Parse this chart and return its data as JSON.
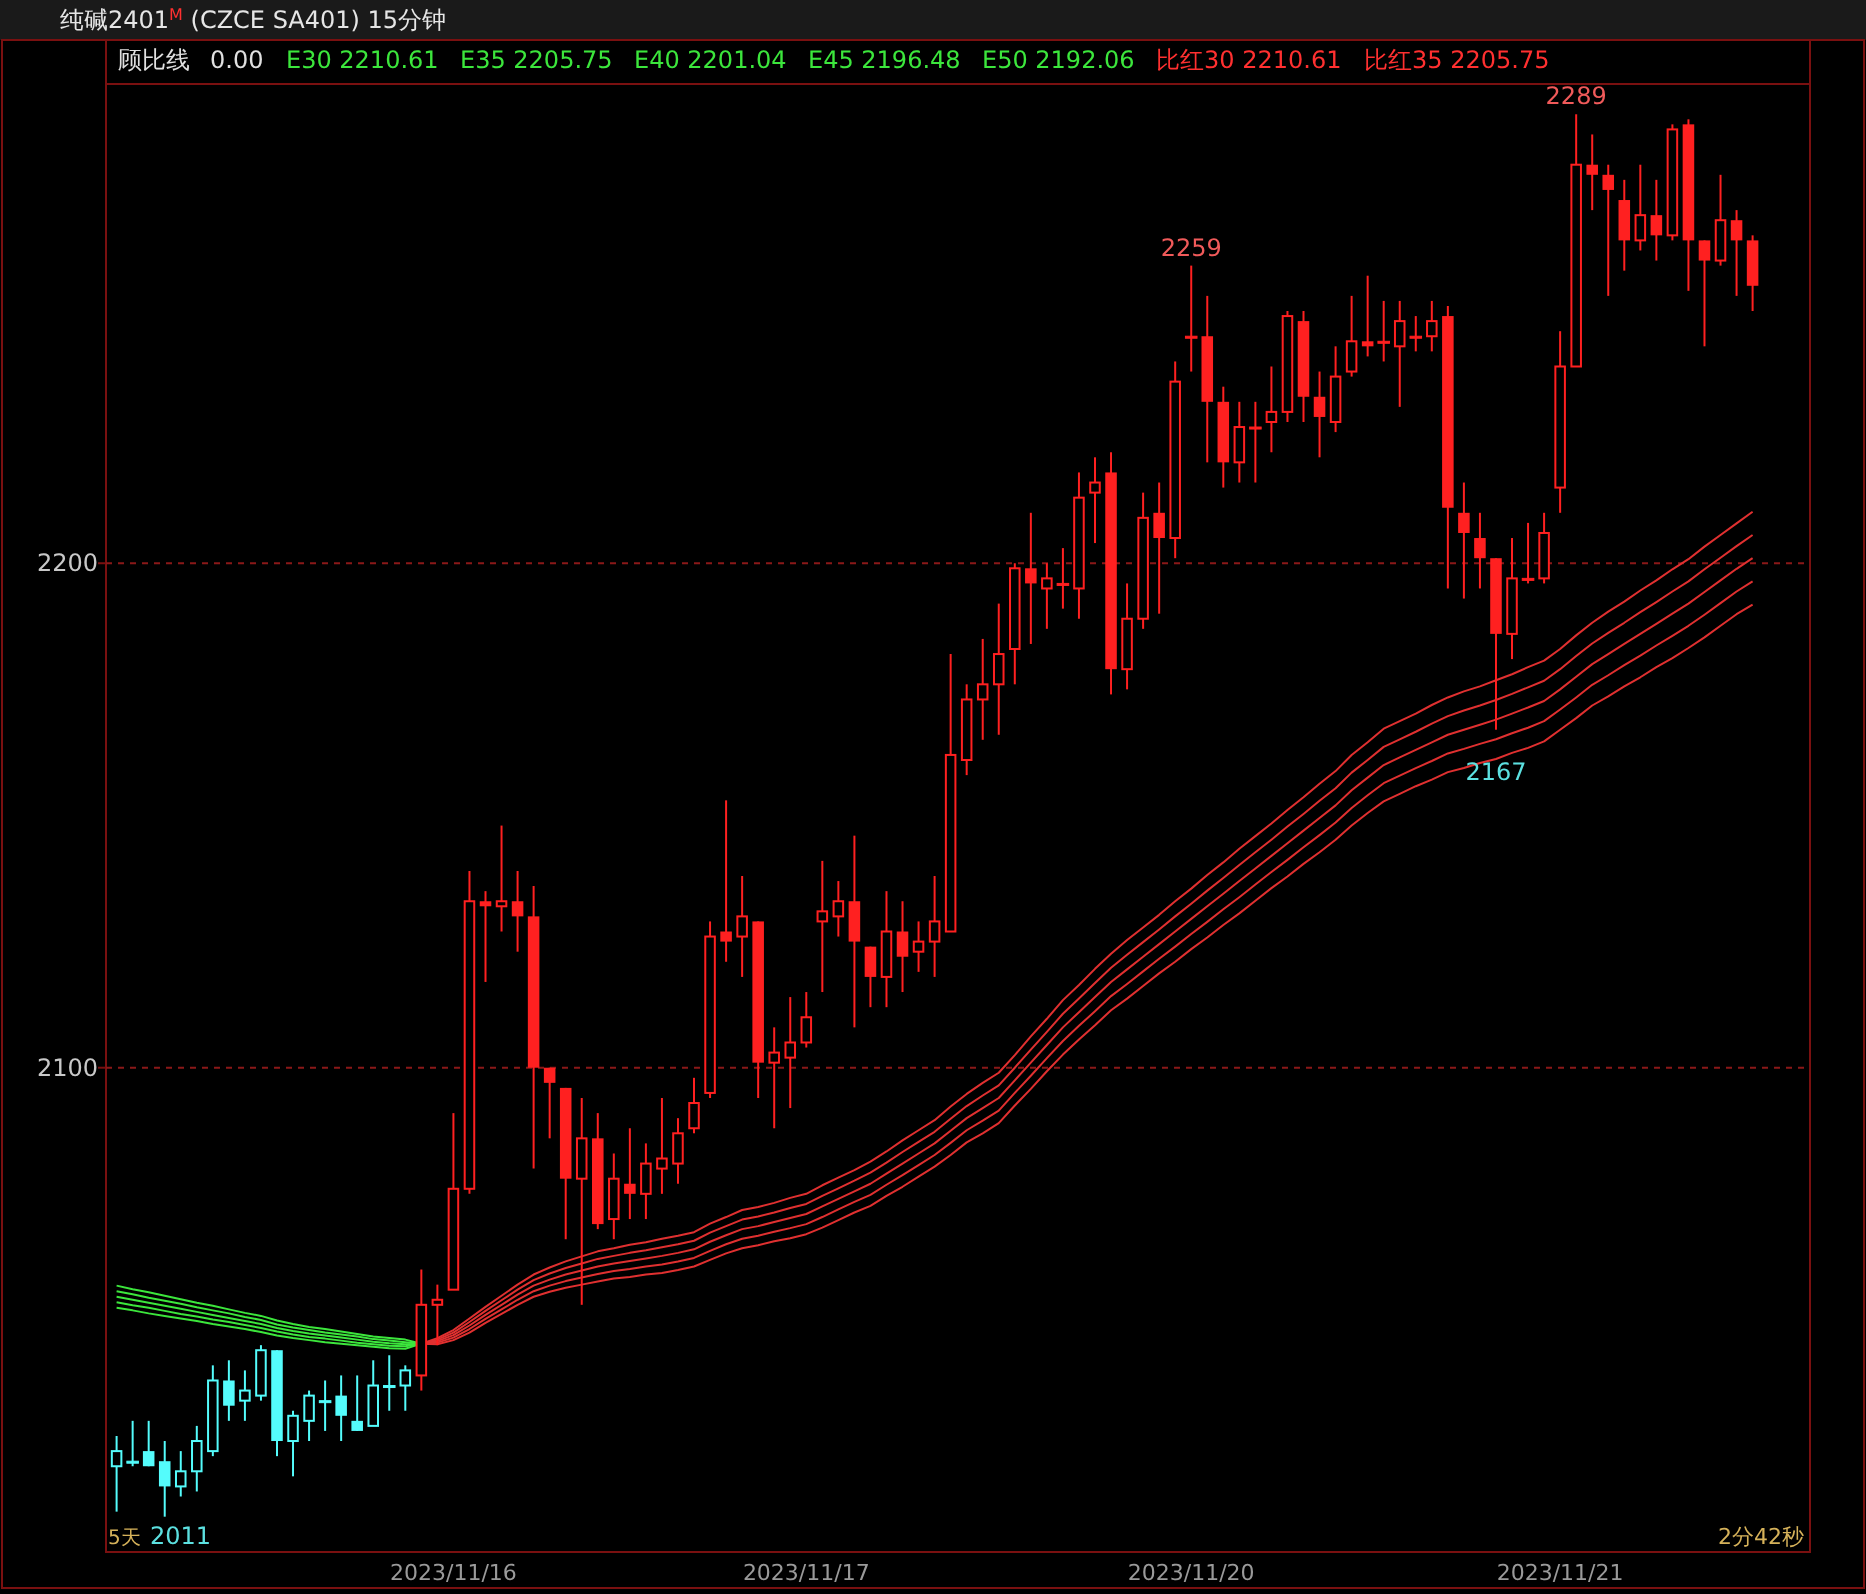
{
  "chart_data": {
    "type": "candlestick",
    "title": "纯碱2401$^{M}$ (CZCE SA401)  15分钟",
    "categories": [
      null,
      null,
      null,
      null,
      null,
      null,
      null,
      null,
      null,
      null,
      null,
      null,
      null,
      null,
      null,
      null,
      null,
      null,
      null,
      null,
      null,
      "2023/11/16",
      null,
      null,
      null,
      null,
      null,
      null,
      null,
      null,
      null,
      null,
      null,
      null,
      null,
      null,
      null,
      null,
      null,
      null,
      null,
      null,
      null,
      "2023/11/17",
      null,
      null,
      null,
      null,
      null,
      null,
      null,
      null,
      null,
      null,
      null,
      null,
      null,
      null,
      null,
      null,
      null,
      null,
      null,
      null,
      null,
      null,
      null,
      "2023/11/20",
      null,
      null,
      null,
      null,
      null,
      null,
      null,
      null,
      null,
      null,
      null,
      null,
      null,
      null,
      null,
      null,
      null,
      null,
      null,
      null,
      null,
      null,
      "2023/11/21",
      null,
      null,
      null,
      null,
      null,
      null,
      null,
      null,
      null,
      null,
      null,
      null
    ],
    "ohlc": [
      [
        2021,
        2027,
        2012,
        2024
      ],
      [
        2022,
        2030,
        2021,
        2022
      ],
      [
        2024,
        2030,
        2021,
        2021
      ],
      [
        2022,
        2026,
        2011,
        2017
      ],
      [
        2017,
        2024,
        2015,
        2020
      ],
      [
        2020,
        2029,
        2016,
        2026
      ],
      [
        2024,
        2041,
        2023,
        2038
      ],
      [
        2038,
        2042,
        2030,
        2033
      ],
      [
        2034,
        2040,
        2030,
        2036
      ],
      [
        2035,
        2045,
        2034,
        2044
      ],
      [
        2044,
        2044,
        2023,
        2026
      ],
      [
        2026,
        2032,
        2019,
        2031
      ],
      [
        2030,
        2036,
        2026,
        2035
      ],
      [
        2034,
        2038,
        2028,
        2034
      ],
      [
        2035,
        2039,
        2026,
        2031
      ],
      [
        2030,
        2039,
        2028,
        2028
      ],
      [
        2029,
        2042,
        2029,
        2037
      ],
      [
        2037,
        2043,
        2032,
        2037
      ],
      [
        2037,
        2041,
        2032,
        2040
      ],
      [
        2039,
        2060,
        2036,
        2053
      ],
      [
        2053,
        2057,
        2045,
        2054
      ],
      [
        2056,
        2091,
        2056,
        2076
      ],
      [
        2076,
        2139,
        2075,
        2133
      ],
      [
        2133,
        2135,
        2117,
        2132
      ],
      [
        2132,
        2148,
        2127,
        2133
      ],
      [
        2133,
        2139,
        2123,
        2130
      ],
      [
        2130,
        2136,
        2080,
        2100
      ],
      [
        2100,
        2100,
        2086,
        2097
      ],
      [
        2096,
        2096,
        2066,
        2078
      ],
      [
        2078,
        2094,
        2053,
        2086
      ],
      [
        2086,
        2091,
        2068,
        2069
      ],
      [
        2070,
        2083,
        2066,
        2078
      ],
      [
        2077,
        2088,
        2070,
        2075
      ],
      [
        2075,
        2085,
        2070,
        2081
      ],
      [
        2080,
        2094,
        2075,
        2082
      ],
      [
        2081,
        2090,
        2077,
        2087
      ],
      [
        2088,
        2098,
        2087,
        2093
      ],
      [
        2095,
        2129,
        2094,
        2126
      ],
      [
        2127,
        2153,
        2121,
        2125
      ],
      [
        2126,
        2138,
        2118,
        2130
      ],
      [
        2129,
        2129,
        2094,
        2101
      ],
      [
        2101,
        2108,
        2088,
        2103
      ],
      [
        2102,
        2114,
        2092,
        2105
      ],
      [
        2105,
        2115,
        2104,
        2110
      ],
      [
        2129,
        2141,
        2115,
        2131
      ],
      [
        2130,
        2137,
        2126,
        2133
      ],
      [
        2133,
        2146,
        2108,
        2125
      ],
      [
        2124,
        2124,
        2112,
        2118
      ],
      [
        2118,
        2135,
        2112,
        2127
      ],
      [
        2127,
        2133,
        2115,
        2122
      ],
      [
        2123,
        2129,
        2119,
        2125
      ],
      [
        2125,
        2138,
        2118,
        2129
      ],
      [
        2127,
        2182,
        2127,
        2162
      ],
      [
        2161,
        2176,
        2158,
        2173
      ],
      [
        2173,
        2185,
        2165,
        2176
      ],
      [
        2176,
        2192,
        2166,
        2182
      ],
      [
        2183,
        2200,
        2176,
        2199
      ],
      [
        2199,
        2210,
        2184,
        2196
      ],
      [
        2195,
        2200,
        2187,
        2197
      ],
      [
        2196,
        2203,
        2191,
        2196
      ],
      [
        2195,
        2218,
        2189,
        2213
      ],
      [
        2214,
        2221,
        2204,
        2216
      ],
      [
        2218,
        2222,
        2174,
        2179
      ],
      [
        2179,
        2196,
        2175,
        2189
      ],
      [
        2189,
        2214,
        2187,
        2209
      ],
      [
        2210,
        2216,
        2190,
        2205
      ],
      [
        2205,
        2240,
        2201,
        2236
      ],
      [
        2245,
        2259,
        2238,
        2245
      ],
      [
        2245,
        2253,
        2220,
        2232
      ],
      [
        2232,
        2235,
        2215,
        2220
      ],
      [
        2220,
        2232,
        2216,
        2227
      ],
      [
        2227,
        2232,
        2216,
        2227
      ],
      [
        2228,
        2239,
        2222,
        2230
      ],
      [
        2230,
        2250,
        2228,
        2249
      ],
      [
        2248,
        2250,
        2228,
        2233
      ],
      [
        2233,
        2238,
        2221,
        2229
      ],
      [
        2228,
        2243,
        2226,
        2237
      ],
      [
        2238,
        2253,
        2237,
        2244
      ],
      [
        2244,
        2257,
        2241,
        2243
      ],
      [
        2244,
        2252,
        2240,
        2244
      ],
      [
        2243,
        2252,
        2231,
        2248
      ],
      [
        2245,
        2249,
        2242,
        2245
      ],
      [
        2245,
        2252,
        2242,
        2248
      ],
      [
        2249,
        2251,
        2195,
        2211
      ],
      [
        2210,
        2216,
        2193,
        2206
      ],
      [
        2205,
        2210,
        2195,
        2201
      ],
      [
        2201,
        2201,
        2167,
        2186
      ],
      [
        2186,
        2205,
        2181,
        2197
      ],
      [
        2197,
        2208,
        2196,
        2197
      ],
      [
        2197,
        2210,
        2196,
        2206
      ],
      [
        2215,
        2246,
        2210,
        2239
      ],
      [
        2239,
        2289,
        2239,
        2279
      ],
      [
        2279,
        2285,
        2270,
        2277
      ],
      [
        2277,
        2279,
        2253,
        2274
      ],
      [
        2272,
        2276,
        2258,
        2264
      ],
      [
        2264,
        2279,
        2262,
        2269
      ],
      [
        2269,
        2276,
        2260,
        2265
      ],
      [
        2265,
        2287,
        2264,
        2286
      ],
      [
        2287,
        2288,
        2254,
        2264
      ],
      [
        2264,
        2264,
        2243,
        2260
      ],
      [
        2260,
        2277,
        2259,
        2268
      ],
      [
        2268,
        2270,
        2253,
        2264
      ],
      [
        2264,
        2265,
        2250,
        2255
      ]
    ],
    "colors": [
      "#54fcfc",
      "#54fcfc",
      "#54fcfc",
      "#54fcfc",
      "#54fcfc",
      "#54fcfc",
      "#54fcfc",
      "#54fcfc",
      "#54fcfc",
      "#54fcfc",
      "#54fcfc",
      "#54fcfc",
      "#54fcfc",
      "#54fcfc",
      "#54fcfc",
      "#54fcfc",
      "#54fcfc",
      "#54fcfc",
      "#54fcfc",
      "#ff2020",
      "#ff2020",
      "#ff2020",
      "#ff2020",
      "#ff2020",
      "#ff2020",
      "#ff2020",
      "#ff2020",
      "#ff2020",
      "#ff2020",
      "#ff2020",
      "#ff2020",
      "#ff2020",
      "#ff2020",
      "#ff2020",
      "#ff2020",
      "#ff2020",
      "#ff2020",
      "#ff2020",
      "#ff2020",
      "#ff2020",
      "#ff2020",
      "#ff2020",
      "#ff2020",
      "#ff2020",
      "#ff2020",
      "#ff2020",
      "#ff2020",
      "#ff2020",
      "#ff2020",
      "#ff2020",
      "#ff2020",
      "#ff2020",
      "#ff2020",
      "#ff2020",
      "#ff2020",
      "#ff2020",
      "#ff2020",
      "#ff2020",
      "#ff2020",
      "#ff2020",
      "#ff2020",
      "#ff2020",
      "#ff2020",
      "#ff2020",
      "#ff2020",
      "#ff2020",
      "#ff2020",
      "#ff2020",
      "#ff2020",
      "#ff2020",
      "#ff2020",
      "#ff2020",
      "#ff2020",
      "#ff2020",
      "#ff2020",
      "#ff2020",
      "#ff2020",
      "#ff2020",
      "#ff2020",
      "#ff2020",
      "#ff2020",
      "#ff2020",
      "#ff2020",
      "#ff2020",
      "#ff2020",
      "#ff2020",
      "#ff2020",
      "#ff2020",
      "#ff2020",
      "#ff2020",
      "#ff2020",
      "#ff2020",
      "#ff2020",
      "#ff2020",
      "#ff2020",
      "#ff2020",
      "#ff2020",
      "#ff2020",
      "#ff2020",
      "#ff2020",
      "#ff2020",
      "#ff2020",
      "#ff2020"
    ],
    "series": [
      {
        "type": "line",
        "color": "#3ce63c",
        "values": [
          2052.4,
          2051.9,
          2051.3,
          2050.8,
          2050.3,
          2049.8,
          2049.2,
          2048.7,
          2048.2,
          2047.6,
          2046.9,
          2046.4,
          2046.0,
          2045.6,
          2045.3,
          2045.0,
          2044.7,
          2044.4,
          2044.3,
          2045.3,
          null,
          null,
          null,
          null,
          null,
          null,
          null,
          null,
          null,
          null,
          null,
          null,
          null,
          null,
          null,
          null,
          null,
          null,
          null,
          null,
          null,
          null,
          null,
          null,
          null,
          null,
          null,
          null,
          null,
          null,
          null,
          null,
          null,
          null,
          null,
          null,
          null,
          null,
          null,
          null,
          null,
          null,
          null,
          null,
          null,
          null,
          null,
          null,
          null,
          null,
          null,
          null,
          null,
          null,
          null,
          null,
          null,
          null,
          null,
          null,
          null,
          null,
          null,
          null,
          null,
          null,
          null,
          null,
          null,
          null,
          null,
          null,
          null,
          null,
          null,
          null,
          null,
          null,
          null,
          null,
          null,
          null,
          null
        ]
      },
      {
        "type": "line",
        "color": "#3ce63c",
        "values": [
          2053.5,
          2052.9,
          2052.4,
          2051.8,
          2051.2,
          2050.7,
          2050.1,
          2049.6,
          2049.0,
          2048.4,
          2047.7,
          2047.1,
          2046.6,
          2046.3,
          2045.9,
          2045.5,
          2045.2,
          2044.9,
          2044.8,
          2045.3,
          null,
          null,
          null,
          null,
          null,
          null,
          null,
          null,
          null,
          null,
          null,
          null,
          null,
          null,
          null,
          null,
          null,
          null,
          null,
          null,
          null,
          null,
          null,
          null,
          null,
          null,
          null,
          null,
          null,
          null,
          null,
          null,
          null,
          null,
          null,
          null,
          null,
          null,
          null,
          null,
          null,
          null,
          null,
          null,
          null,
          null,
          null,
          null,
          null,
          null,
          null,
          null,
          null,
          null,
          null,
          null,
          null,
          null,
          null,
          null,
          null,
          null,
          null,
          null,
          null,
          null,
          null,
          null,
          null,
          null,
          null,
          null,
          null,
          null,
          null,
          null,
          null,
          null,
          null,
          null,
          null,
          null,
          null
        ]
      },
      {
        "type": "line",
        "color": "#3ce63c",
        "values": [
          2054.6,
          2054.0,
          2053.4,
          2052.8,
          2052.2,
          2051.6,
          2051.0,
          2050.4,
          2049.8,
          2049.2,
          2048.4,
          2047.8,
          2047.3,
          2046.9,
          2046.5,
          2046.1,
          2045.7,
          2045.4,
          2045.2,
          2045.3,
          null,
          null,
          null,
          null,
          null,
          null,
          null,
          null,
          null,
          null,
          null,
          null,
          null,
          null,
          null,
          null,
          null,
          null,
          null,
          null,
          null,
          null,
          null,
          null,
          null,
          null,
          null,
          null,
          null,
          null,
          null,
          null,
          null,
          null,
          null,
          null,
          null,
          null,
          null,
          null,
          null,
          null,
          null,
          null,
          null,
          null,
          null,
          null,
          null,
          null,
          null,
          null,
          null,
          null,
          null,
          null,
          null,
          null,
          null,
          null,
          null,
          null,
          null,
          null,
          null,
          null,
          null,
          null,
          null,
          null,
          null,
          null,
          null,
          null,
          null,
          null,
          null,
          null,
          null,
          null,
          null,
          null,
          null
        ]
      },
      {
        "type": "line",
        "color": "#3ce63c",
        "values": [
          2055.7,
          2055.1,
          2054.4,
          2053.8,
          2053.2,
          2052.5,
          2051.9,
          2051.3,
          2050.6,
          2050.0,
          2049.1,
          2048.5,
          2048.0,
          2047.5,
          2047.1,
          2046.7,
          2046.2,
          2045.9,
          2045.6,
          2045.3,
          null,
          null,
          null,
          null,
          null,
          null,
          null,
          null,
          null,
          null,
          null,
          null,
          null,
          null,
          null,
          null,
          null,
          null,
          null,
          null,
          null,
          null,
          null,
          null,
          null,
          null,
          null,
          null,
          null,
          null,
          null,
          null,
          null,
          null,
          null,
          null,
          null,
          null,
          null,
          null,
          null,
          null,
          null,
          null,
          null,
          null,
          null,
          null,
          null,
          null,
          null,
          null,
          null,
          null,
          null,
          null,
          null,
          null,
          null,
          null,
          null,
          null,
          null,
          null,
          null,
          null,
          null,
          null,
          null,
          null,
          null,
          null,
          null,
          null,
          null,
          null,
          null,
          null,
          null,
          null,
          null,
          null,
          null
        ]
      },
      {
        "type": "line",
        "color": "#3ce63c",
        "values": [
          2056.8,
          2056.1,
          2055.5,
          2054.8,
          2054.1,
          2053.4,
          2052.8,
          2052.1,
          2051.4,
          2050.8,
          2049.9,
          2049.2,
          2048.6,
          2048.2,
          2047.7,
          2047.2,
          2046.7,
          2046.4,
          2046.1,
          2045.3,
          null,
          null,
          null,
          null,
          null,
          null,
          null,
          null,
          null,
          null,
          null,
          null,
          null,
          null,
          null,
          null,
          null,
          null,
          null,
          null,
          null,
          null,
          null,
          null,
          null,
          null,
          null,
          null,
          null,
          null,
          null,
          null,
          null,
          null,
          null,
          null,
          null,
          null,
          null,
          null,
          null,
          null,
          null,
          null,
          null,
          null,
          null,
          null,
          null,
          null,
          null,
          null,
          null,
          null,
          null,
          null,
          null,
          null,
          null,
          null,
          null,
          null,
          null,
          null,
          null,
          null,
          null,
          null,
          null,
          null,
          null,
          null,
          null,
          null,
          null,
          null,
          null,
          null,
          null,
          null,
          null,
          null,
          null
        ]
      },
      {
        "type": "line",
        "color": "#e03030",
        "values": [
          null,
          null,
          null,
          null,
          null,
          null,
          null,
          null,
          null,
          null,
          null,
          null,
          null,
          null,
          null,
          null,
          null,
          null,
          null,
          2045.3,
          2046.4,
          2048.0,
          2050.3,
          2052.6,
          2054.8,
          2057.0,
          2059.0,
          2060.4,
          2061.6,
          2062.6,
          2063.6,
          2064.2,
          2064.9,
          2065.4,
          2066.1,
          2066.7,
          2067.4,
          2069.1,
          2070.4,
          2071.8,
          2072.4,
          2073.2,
          2074.2,
          2075.0,
          2076.7,
          2078.2,
          2079.7,
          2081.4,
          2083.4,
          2085.6,
          2087.6,
          2089.6,
          2092.3,
          2094.8,
          2097.0,
          2099.0,
          2102.5,
          2106.2,
          2109.7,
          2113.4,
          2116.4,
          2119.6,
          2122.6,
          2125.3,
          2127.8,
          2130.3,
          2133.0,
          2135.5,
          2138.2,
          2140.7,
          2143.4,
          2145.9,
          2148.4,
          2151.1,
          2153.6,
          2156.3,
          2158.8,
          2162.0,
          2164.5,
          2167.2,
          2168.7,
          2170.2,
          2171.9,
          2173.4,
          2174.6,
          2175.6,
          2176.8,
          2178.0,
          2179.4,
          2180.7,
          2183.0,
          2185.7,
          2188.2,
          2190.4,
          2192.4,
          2194.6,
          2196.6,
          2198.8,
          2200.8,
          2203.3,
          2205.6,
          2207.9,
          2210.2
        ]
      },
      {
        "type": "line",
        "color": "#e03030",
        "values": [
          null,
          null,
          null,
          null,
          null,
          null,
          null,
          null,
          null,
          null,
          null,
          null,
          null,
          null,
          null,
          null,
          null,
          null,
          null,
          2045.3,
          2046.1,
          2047.5,
          2049.6,
          2051.8,
          2053.9,
          2056.0,
          2057.9,
          2059.2,
          2060.3,
          2061.2,
          2062.1,
          2062.7,
          2063.3,
          2063.8,
          2064.4,
          2065.0,
          2065.7,
          2067.3,
          2068.6,
          2069.9,
          2070.5,
          2071.3,
          2072.2,
          2073.0,
          2074.6,
          2076.1,
          2077.6,
          2079.2,
          2081.2,
          2083.3,
          2085.3,
          2087.3,
          2089.9,
          2092.4,
          2094.5,
          2096.5,
          2100.0,
          2103.6,
          2107.1,
          2110.7,
          2113.7,
          2116.8,
          2119.8,
          2122.4,
          2124.9,
          2127.4,
          2130.0,
          2132.5,
          2135.1,
          2137.6,
          2140.2,
          2142.7,
          2145.2,
          2147.8,
          2150.3,
          2152.9,
          2155.4,
          2158.5,
          2161.0,
          2163.6,
          2165.1,
          2166.6,
          2168.2,
          2169.7,
          2170.8,
          2171.8,
          2172.9,
          2174.1,
          2175.4,
          2176.7,
          2179.0,
          2181.6,
          2184.1,
          2186.2,
          2188.2,
          2190.3,
          2192.3,
          2194.4,
          2196.4,
          2198.8,
          2201.1,
          2203.4,
          2205.6
        ]
      },
      {
        "type": "line",
        "color": "#e03030",
        "values": [
          null,
          null,
          null,
          null,
          null,
          null,
          null,
          null,
          null,
          null,
          null,
          null,
          null,
          null,
          null,
          null,
          null,
          null,
          null,
          2045.3,
          2045.8,
          2047.0,
          2048.9,
          2051.0,
          2053.0,
          2055.0,
          2056.8,
          2058.0,
          2059.0,
          2059.8,
          2060.6,
          2061.2,
          2061.7,
          2062.2,
          2062.7,
          2063.3,
          2064.0,
          2065.5,
          2066.8,
          2068.0,
          2068.6,
          2069.4,
          2070.2,
          2071.0,
          2072.5,
          2074.0,
          2075.5,
          2077.0,
          2079.0,
          2081.0,
          2083.0,
          2085.0,
          2087.5,
          2090.0,
          2092.0,
          2094.0,
          2097.5,
          2101.0,
          2104.5,
          2108.0,
          2111.0,
          2114.0,
          2117.0,
          2119.5,
          2122.0,
          2124.5,
          2127.0,
          2129.5,
          2132.0,
          2134.5,
          2137.0,
          2139.5,
          2142.0,
          2144.5,
          2147.0,
          2149.5,
          2152.0,
          2155.0,
          2157.5,
          2160.0,
          2161.5,
          2163.0,
          2164.5,
          2166.0,
          2167.0,
          2168.0,
          2169.0,
          2170.2,
          2171.4,
          2172.7,
          2175.0,
          2177.5,
          2180.0,
          2182.0,
          2184.0,
          2186.0,
          2188.0,
          2190.0,
          2192.0,
          2194.3,
          2196.6,
          2198.9,
          2201.0
        ]
      },
      {
        "type": "line",
        "color": "#e03030",
        "values": [
          null,
          null,
          null,
          null,
          null,
          null,
          null,
          null,
          null,
          null,
          null,
          null,
          null,
          null,
          null,
          null,
          null,
          null,
          null,
          2045.3,
          2045.5,
          2046.5,
          2048.2,
          2050.2,
          2052.1,
          2054.0,
          2055.7,
          2056.8,
          2057.7,
          2058.4,
          2059.1,
          2059.7,
          2060.1,
          2060.6,
          2061.0,
          2061.6,
          2062.3,
          2063.7,
          2065.0,
          2066.1,
          2066.7,
          2067.5,
          2068.2,
          2069.0,
          2070.4,
          2071.9,
          2073.4,
          2074.8,
          2076.8,
          2078.7,
          2080.7,
          2082.7,
          2085.1,
          2087.6,
          2089.5,
          2091.5,
          2095.0,
          2098.4,
          2101.9,
          2105.3,
          2108.3,
          2111.2,
          2114.2,
          2116.6,
          2119.1,
          2121.6,
          2124.0,
          2126.5,
          2128.9,
          2131.4,
          2133.8,
          2136.3,
          2138.8,
          2141.2,
          2143.7,
          2146.1,
          2148.6,
          2151.5,
          2154.0,
          2156.4,
          2157.9,
          2159.4,
          2160.8,
          2162.3,
          2163.2,
          2164.2,
          2165.1,
          2166.3,
          2167.4,
          2168.7,
          2171.0,
          2173.4,
          2175.9,
          2177.8,
          2179.8,
          2181.7,
          2183.7,
          2185.6,
          2187.6,
          2189.8,
          2192.1,
          2194.4,
          2196.4
        ]
      },
      {
        "type": "line",
        "color": "#e03030",
        "values": [
          null,
          null,
          null,
          null,
          null,
          null,
          null,
          null,
          null,
          null,
          null,
          null,
          null,
          null,
          null,
          null,
          null,
          null,
          null,
          2045.3,
          2045.2,
          2046.0,
          2047.5,
          2049.4,
          2051.2,
          2053.0,
          2054.6,
          2055.6,
          2056.4,
          2057.0,
          2057.6,
          2058.2,
          2058.5,
          2059.0,
          2059.3,
          2059.9,
          2060.6,
          2061.9,
          2063.2,
          2064.2,
          2064.8,
          2065.6,
          2066.2,
          2067.0,
          2068.3,
          2069.8,
          2071.3,
          2072.6,
          2074.6,
          2076.4,
          2078.4,
          2080.4,
          2082.7,
          2085.2,
          2087.0,
          2089.0,
          2092.5,
          2095.8,
          2099.3,
          2102.6,
          2105.6,
          2108.4,
          2111.4,
          2113.7,
          2116.2,
          2118.7,
          2121.0,
          2123.5,
          2125.8,
          2128.3,
          2130.6,
          2133.1,
          2135.6,
          2137.9,
          2140.4,
          2142.7,
          2145.2,
          2148.0,
          2150.5,
          2152.8,
          2154.3,
          2155.8,
          2157.1,
          2158.6,
          2159.4,
          2160.4,
          2161.2,
          2162.4,
          2163.4,
          2164.7,
          2167.0,
          2169.3,
          2171.8,
          2173.6,
          2175.6,
          2177.4,
          2179.4,
          2181.2,
          2183.2,
          2185.3,
          2187.6,
          2189.9,
          2191.8
        ]
      }
    ],
    "ylim": [
      2004,
      2295
    ],
    "yticks": [
      2100,
      2200
    ],
    "grid": "y",
    "line_style": "solid",
    "annotations": [
      "顾比线",
      "0.00",
      "E30 2210.61",
      "E35 2205.75",
      "E40 2201.04",
      "E45 2196.48",
      "E50 2192.06",
      "比红30 2210.61",
      "比红35 2205.75",
      {
        "text": "2259",
        "y": 2259
      },
      {
        "text": "2289",
        "y": 2289
      },
      {
        "text": "2167",
        "y": 2167
      },
      "5天",
      "2011",
      "2分42秒"
    ]
  }
}
